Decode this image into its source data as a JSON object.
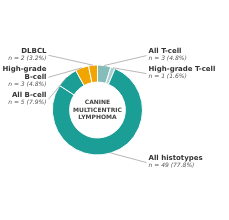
{
  "chart_data": {
    "type": "doughnut",
    "title": "CANINE\nMULTICENTRIC\nLYMPHOMA",
    "categories": [
      "All T-cell",
      "High-grade T-cell",
      "All histotypes",
      "All B-cell",
      "High-grade\nB-cell",
      "DLBCL"
    ],
    "values": [
      4.8,
      1.6,
      77.8,
      7.9,
      4.8,
      3.2
    ],
    "value_labels": [
      "n = 3 (4.8%)",
      "n = 1 (1.6%)",
      "n = 49 (77.8%)",
      "n = 5 (7.9%)",
      "n = 3 (4.8%)",
      "n = 2 (3.2%)"
    ],
    "colors": [
      "#86bcba",
      "#b0d0ce",
      "#1a9e96",
      "#1a9e96",
      "#f0a500",
      "#f0a500"
    ],
    "data_labels": true
  }
}
